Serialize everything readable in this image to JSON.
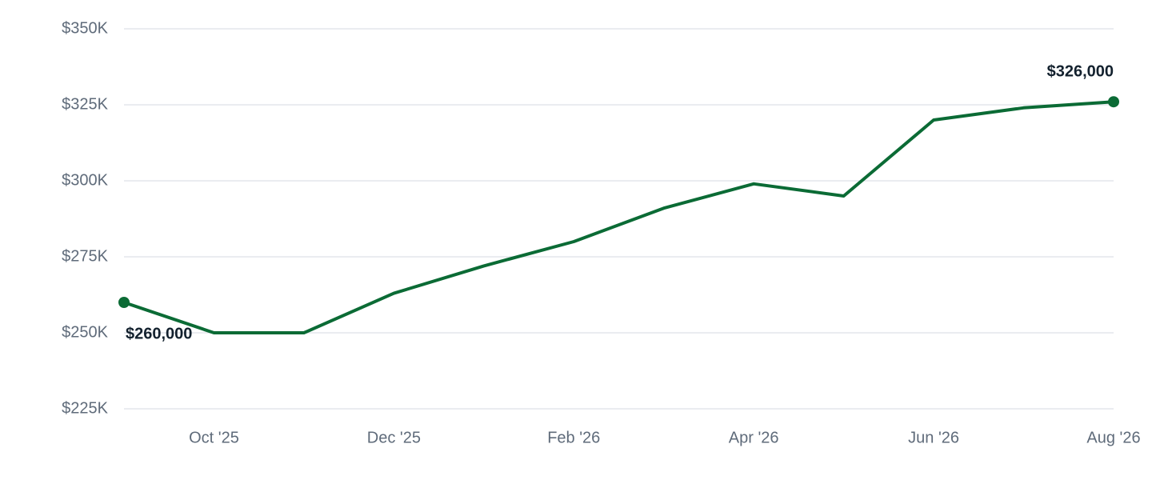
{
  "chart_data": {
    "type": "line",
    "categories": [
      null,
      "Oct '25",
      null,
      "Dec '25",
      null,
      "Feb '26",
      null,
      "Apr '26",
      null,
      "Jun '26",
      null,
      "Aug '26"
    ],
    "series": [
      {
        "color": "#0b6b35",
        "values": [
          260000,
          250000,
          250000,
          263000,
          272000,
          280000,
          291000,
          299000,
          295000,
          320000,
          324000,
          326000
        ],
        "value_labels": [
          "$260,000",
          null,
          null,
          null,
          null,
          null,
          null,
          null,
          null,
          null,
          null,
          "$326,000"
        ]
      }
    ],
    "ylim": [
      225000,
      350000
    ],
    "yticks": [
      {
        "value": 225000,
        "label": "$225K"
      },
      {
        "value": 250000,
        "label": "$250K"
      },
      {
        "value": 275000,
        "label": "$275K"
      },
      {
        "value": 300000,
        "label": "$300K"
      },
      {
        "value": 325000,
        "label": "$325K"
      },
      {
        "value": 350000,
        "label": "$350K"
      }
    ],
    "grid": true
  }
}
